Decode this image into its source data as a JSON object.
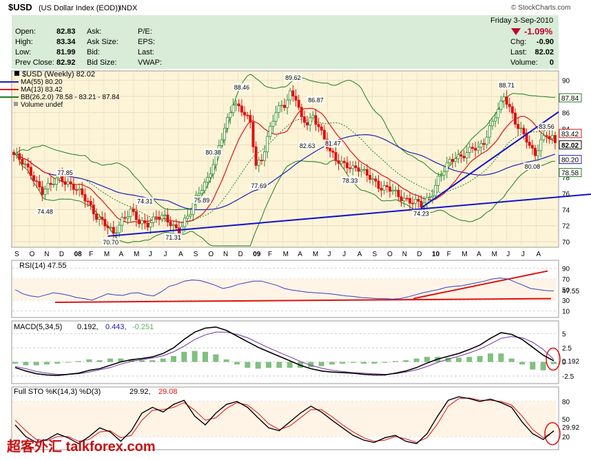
{
  "header": {
    "symbol": "$USD",
    "name": "(US Dollar Index (EOD))",
    "exchange": "INDX",
    "credit": "© StockCharts.com",
    "date": "Friday  3-Sep-2010",
    "pct_change": "-1.09%"
  },
  "quote": {
    "open_label": "Open:",
    "open": "82.83",
    "high_label": "High:",
    "high": "83.34",
    "low_label": "Low:",
    "low": "81.99",
    "prev_label": "Prev Close:",
    "prev": "82.92",
    "ask_label": "Ask:",
    "ask_size_label": "Ask Size:",
    "bid_label": "Bid:",
    "bid_size_label": "Bid Size:",
    "pe_label": "P/E:",
    "eps_label": "EPS:",
    "last_label": "Last:",
    "vwap_label": "VWAP:",
    "chg_label": "Chg:",
    "chg": "-0.90",
    "last2_label": "Last:",
    "last2": "82.02",
    "volume_label": "Volume:",
    "volume": "0"
  },
  "legend": {
    "price": "$USD (Weekly) 82.02",
    "ma55": "MA(55) 80.20",
    "ma13": "MA(13) 83.42",
    "bb": "BB(26,2.0) 78.58 - 83.21 - 87.84",
    "volume": "Volume undef"
  },
  "panels": {
    "rsi_label": "RSI(14) 47.55",
    "macd_label": "MACD(5,34,5)",
    "macd_v1": "0.192,",
    "macd_v2": "0.443,",
    "macd_v3": "-0.251",
    "sto_label": "Full STO %K(14,3) %D(3)",
    "sto_v1": "29.92,",
    "sto_v2": "29.08"
  },
  "watermark": "超客外汇 talkforex.com",
  "colors": {
    "price_bg": "#fdf4d8",
    "up": "#2e8b2e",
    "down": "#e01010",
    "ma13": "#e01010",
    "ma55": "#2020b0",
    "bb": "#1e7d1e",
    "trendline": "#1010d0",
    "rsi_line": "#3040c0",
    "macd_line": "#000000",
    "signal": "#7030a0",
    "histogram": "#60b060",
    "header_bg": "#d8ecd8"
  },
  "chart_data": {
    "type": "candlestick",
    "interval": "weekly",
    "price_axis": {
      "ylim": [
        69.5,
        91
      ],
      "ticks": [
        70,
        72,
        74,
        76,
        78,
        80,
        82,
        84,
        86,
        88,
        90
      ],
      "scale": "linear"
    },
    "x_axis_labels": [
      "S",
      "O",
      "N",
      "D",
      "08",
      "F",
      "M",
      "A",
      "M",
      "J",
      "J",
      "A",
      "S",
      "O",
      "N",
      "D",
      "09",
      "F",
      "M",
      "A",
      "M",
      "J",
      "J",
      "A",
      "S",
      "O",
      "N",
      "D",
      "10",
      "F",
      "M",
      "A",
      "M",
      "J",
      "J",
      "A"
    ],
    "close_path": [
      [
        0,
        80.8
      ],
      [
        6,
        78.6
      ],
      [
        10,
        76.2
      ],
      [
        13,
        76.9
      ],
      [
        16,
        78.2
      ],
      [
        19,
        77.3
      ],
      [
        22,
        76.3
      ],
      [
        26,
        75.1
      ],
      [
        29,
        73.2
      ],
      [
        32,
        72.0
      ],
      [
        35,
        71.0
      ],
      [
        38,
        72.9
      ],
      [
        41,
        73.7
      ],
      [
        44,
        72.3
      ],
      [
        47,
        72.4
      ],
      [
        50,
        73.1
      ],
      [
        53,
        72.8
      ],
      [
        56,
        72.0
      ],
      [
        58,
        71.6
      ],
      [
        62,
        73.5
      ],
      [
        65,
        76.2
      ],
      [
        68,
        78.0
      ],
      [
        71,
        80.5
      ],
      [
        74,
        83.9
      ],
      [
        77,
        87.5
      ],
      [
        80,
        86.3
      ],
      [
        83,
        84.5
      ],
      [
        85,
        79.5
      ],
      [
        87,
        80.4
      ],
      [
        89,
        83.0
      ],
      [
        92,
        86.0
      ],
      [
        95,
        87.0
      ],
      [
        97,
        88.6
      ],
      [
        99,
        88.0
      ],
      [
        101,
        85.0
      ],
      [
        103,
        84.5
      ],
      [
        105,
        85.5
      ],
      [
        107,
        84.6
      ],
      [
        109,
        82.8
      ],
      [
        111,
        81.0
      ],
      [
        113,
        80.0
      ],
      [
        115,
        79.8
      ],
      [
        117,
        79.7
      ],
      [
        119,
        79.2
      ],
      [
        121,
        78.9
      ],
      [
        123,
        78.4
      ],
      [
        125,
        78.1
      ],
      [
        127,
        77.5
      ],
      [
        129,
        76.7
      ],
      [
        131,
        76.5
      ],
      [
        133,
        76.2
      ],
      [
        135,
        75.7
      ],
      [
        137,
        75.5
      ],
      [
        139,
        75.1
      ],
      [
        141,
        74.8
      ],
      [
        143,
        74.4
      ],
      [
        145,
        75.2
      ],
      [
        147,
        76.3
      ],
      [
        149,
        77.9
      ],
      [
        151,
        78.8
      ],
      [
        153,
        79.8
      ],
      [
        155,
        80.5
      ],
      [
        157,
        80.8
      ],
      [
        159,
        81.1
      ],
      [
        161,
        81.5
      ],
      [
        163,
        81.3
      ],
      [
        165,
        82.4
      ],
      [
        167,
        84.3
      ],
      [
        169,
        85.8
      ],
      [
        171,
        86.9
      ],
      [
        172,
        87.8
      ],
      [
        174,
        86.5
      ],
      [
        176,
        85.0
      ],
      [
        178,
        84.0
      ],
      [
        180,
        82.6
      ],
      [
        182,
        81.0
      ],
      [
        183,
        80.5
      ],
      [
        185,
        82.6
      ],
      [
        187,
        83.5
      ],
      [
        189,
        83.0
      ],
      [
        190,
        82.0
      ]
    ],
    "labeled_points": [
      {
        "label": "77.85"
      },
      {
        "label": "74.48"
      },
      {
        "label": "70.70"
      },
      {
        "label": "74.31"
      },
      {
        "label": "71.31"
      },
      {
        "label": "75.89"
      },
      {
        "label": "80.38"
      },
      {
        "label": "88.46"
      },
      {
        "label": "77.69"
      },
      {
        "label": "89.62"
      },
      {
        "label": "82.63"
      },
      {
        "label": "86.87"
      },
      {
        "label": "81.47"
      },
      {
        "label": "78.33"
      },
      {
        "label": "74.23"
      },
      {
        "label": "88.71"
      },
      {
        "label": "83.56"
      },
      {
        "label": "80.08"
      }
    ],
    "last_values": {
      "ma13": 83.42,
      "close": 82.02,
      "ma55": 80.2,
      "bb_upper": 87.84,
      "bb_lower": 78.58
    },
    "rsi": {
      "ylim": [
        0,
        100
      ],
      "ticks": [
        10,
        30,
        50,
        70,
        90
      ],
      "last": 47.55,
      "values": [
        50,
        42,
        38,
        36,
        40,
        44,
        42,
        39,
        35,
        33,
        30,
        36,
        42,
        40,
        39,
        43,
        44,
        40,
        38,
        46,
        56,
        60,
        66,
        68,
        67,
        63,
        58,
        52,
        55,
        60,
        63,
        66,
        66,
        62,
        58,
        52,
        49,
        47,
        45,
        44,
        43,
        42,
        40,
        38,
        37,
        35,
        34,
        33,
        33,
        32,
        33,
        36,
        40,
        44,
        47,
        50,
        54,
        56,
        57,
        60,
        63,
        66,
        70,
        72,
        70,
        64,
        58,
        52,
        50,
        48,
        47.55
      ]
    },
    "macd": {
      "ticks": [
        -2.5,
        0,
        2.5,
        5.0
      ],
      "macd_last": 0.192,
      "signal_last": 0.443,
      "hist_last": -0.251,
      "macd": [
        -1.0,
        -1.6,
        -2.1,
        -2.3,
        -2.4,
        -2.2,
        -2.0,
        -1.5,
        -1.2,
        -0.6,
        0.0,
        0.4,
        0.6,
        0.9,
        1.5,
        2.5,
        4.0,
        5.3,
        6.0,
        6.2,
        5.6,
        4.6,
        3.6,
        2.6,
        1.8,
        1.0,
        0.2,
        -0.6,
        -1.2,
        -1.6,
        -1.8,
        -1.9,
        -2.0,
        -2.2,
        -2.3,
        -2.3,
        -2.0,
        -1.6,
        -1.0,
        -0.2,
        0.5,
        1.0,
        1.5,
        2.2,
        3.0,
        4.2,
        5.2,
        4.9,
        4.0,
        2.6,
        1.2,
        0.192
      ],
      "signal": [
        -0.8,
        -1.2,
        -1.7,
        -2.0,
        -2.2,
        -2.2,
        -2.1,
        -1.8,
        -1.4,
        -1.0,
        -0.4,
        0.1,
        0.4,
        0.7,
        1.1,
        1.8,
        2.8,
        4.0,
        4.8,
        5.3,
        5.3,
        4.9,
        4.3,
        3.4,
        2.5,
        1.7,
        0.9,
        0.1,
        -0.6,
        -1.1,
        -1.5,
        -1.7,
        -1.9,
        -2.0,
        -2.1,
        -2.2,
        -2.1,
        -1.8,
        -1.4,
        -0.8,
        -0.1,
        0.5,
        1.0,
        1.6,
        2.3,
        3.2,
        4.2,
        4.5,
        4.3,
        3.5,
        2.2,
        0.443
      ]
    },
    "stochastic": {
      "ylim": [
        0,
        100
      ],
      "ticks": [
        20,
        50,
        80
      ],
      "k_last": 29.92,
      "d_last": 29.08,
      "k": [
        40,
        20,
        10,
        15,
        25,
        18,
        8,
        20,
        35,
        28,
        12,
        30,
        60,
        70,
        62,
        75,
        82,
        55,
        40,
        60,
        75,
        80,
        70,
        52,
        35,
        30,
        45,
        60,
        72,
        62,
        48,
        35,
        22,
        14,
        10,
        18,
        22,
        12,
        8,
        25,
        55,
        82,
        88,
        85,
        80,
        84,
        78,
        70,
        45,
        25,
        15,
        29.92
      ],
      "d": [
        48,
        30,
        15,
        13,
        20,
        20,
        12,
        15,
        28,
        30,
        18,
        22,
        48,
        65,
        66,
        70,
        78,
        65,
        48,
        52,
        68,
        78,
        74,
        60,
        42,
        32,
        38,
        52,
        66,
        66,
        54,
        40,
        28,
        18,
        12,
        14,
        20,
        16,
        10,
        18,
        42,
        72,
        85,
        86,
        82,
        82,
        80,
        74,
        55,
        32,
        18,
        29.08
      ]
    }
  }
}
